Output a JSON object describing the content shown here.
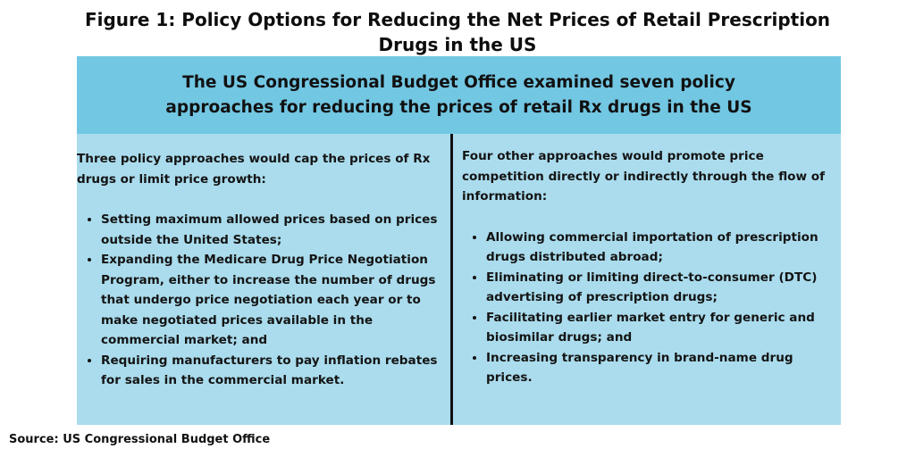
{
  "figure": {
    "title_line1": "Figure 1: Policy Options for Reducing the Net Prices of Retail Prescription",
    "title_line2": "Drugs in the US"
  },
  "header": {
    "line1": "The US Congressional Budget Office examined seven policy",
    "line2": "approaches for reducing the prices of retail Rx drugs in the US"
  },
  "left": {
    "intro": "Three policy approaches would cap the prices of Rx drugs or limit price growth:",
    "items": [
      "Setting maximum allowed prices based on prices outside the United States;",
      "Expanding the Medicare Drug Price Negotiation Program, either to increase the number of drugs that undergo price negotiation each year or to make negotiated prices available in the commercial market; and",
      "Requiring manufacturers to pay inflation rebates for sales in the commercial market."
    ]
  },
  "right": {
    "intro": "Four other approaches would promote price competition directly or indirectly through the flow of information:",
    "items": [
      "Allowing commercial importation of prescription drugs distributed abroad;",
      "Eliminating or limiting direct-to-consumer (DTC) advertising of prescription drugs;",
      "Facilitating earlier market entry for generic and biosimilar drugs; and",
      "Increasing transparency in brand-name drug prices."
    ]
  },
  "source": "Source: US Congressional Budget Office",
  "colors": {
    "header_bg": "#72c7e3",
    "panel_bg": "#aadced",
    "divider": "#111111"
  }
}
